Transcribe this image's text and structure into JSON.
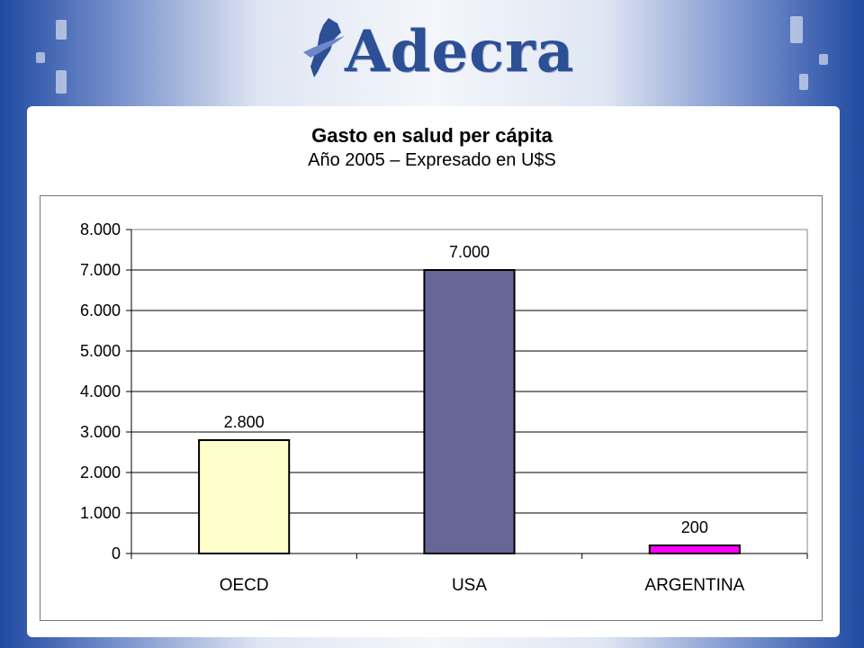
{
  "brand": {
    "name": "Adecra",
    "logo_color": "#2c4f95"
  },
  "slide": {
    "title": "Gasto en salud per cápita",
    "subtitle": "Año 2005 – Expresado en U$S"
  },
  "chart_data": {
    "type": "bar",
    "categories": [
      "OECD",
      "USA",
      "ARGENTINA"
    ],
    "values": [
      2800,
      7000,
      200
    ],
    "data_labels": [
      "2.800",
      "7.000",
      "200"
    ],
    "bar_colors": [
      "#ffffcc",
      "#666699",
      "#ff00ff"
    ],
    "yticks": [
      0,
      1000,
      2000,
      3000,
      4000,
      5000,
      6000,
      7000,
      8000
    ],
    "ytick_labels": [
      "0",
      "1.000",
      "2.000",
      "3.000",
      "4.000",
      "5.000",
      "6.000",
      "7.000",
      "8.000"
    ],
    "ylim": [
      0,
      8000
    ],
    "grid": true,
    "legend": "none"
  }
}
